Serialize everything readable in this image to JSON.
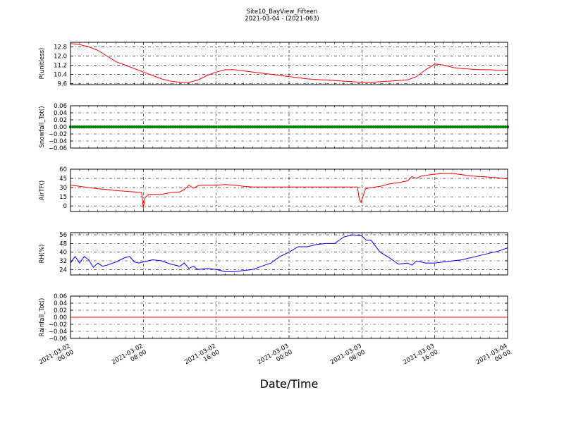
{
  "figure": {
    "title_line1": "Site10_BayView_Fifteen",
    "title_line2": "2021-03-04 - (2021-063)",
    "xlabel": "Date/Time"
  },
  "chart_data": [
    {
      "type": "line",
      "name": "panel-pressure",
      "ylabel": "P(unitless)",
      "ylim": [
        9.5,
        13.2
      ],
      "yticks": [
        "9.6",
        "10.4",
        "11.2",
        "12.0",
        "12.8"
      ],
      "ytick_values": [
        9.6,
        10.4,
        11.2,
        12.0,
        12.8
      ],
      "color": "#ff0000",
      "grid": true,
      "x_hours": [
        0,
        1,
        2,
        3,
        4,
        5,
        6,
        7,
        8,
        9,
        10,
        11,
        12,
        13,
        14,
        15,
        16,
        17,
        18,
        19,
        20,
        21,
        22,
        23,
        24,
        25,
        26,
        27,
        28,
        29,
        30,
        31,
        32,
        33,
        34,
        35,
        36,
        37,
        38,
        39,
        40,
        41,
        42,
        43,
        44,
        45,
        46,
        47,
        48
      ],
      "values": [
        13.1,
        13.0,
        12.8,
        12.5,
        12.0,
        11.5,
        11.2,
        10.9,
        10.6,
        10.3,
        10.0,
        9.8,
        9.7,
        9.7,
        9.9,
        10.3,
        10.6,
        10.8,
        10.8,
        10.7,
        10.6,
        10.5,
        10.4,
        10.3,
        10.2,
        10.1,
        10.0,
        9.95,
        9.9,
        9.85,
        9.8,
        9.75,
        9.7,
        9.7,
        9.75,
        9.8,
        9.85,
        9.9,
        10.2,
        10.8,
        11.3,
        11.2,
        11.0,
        10.9,
        10.85,
        10.8,
        10.8,
        10.75,
        10.75
      ]
    },
    {
      "type": "line",
      "name": "panel-snowfall",
      "ylabel": "Snowfall_Tot()",
      "ylim": [
        -0.06,
        0.06
      ],
      "yticks": [
        "−0.06",
        "−0.04",
        "−0.02",
        "0.00",
        "0.02",
        "0.04",
        "0.06"
      ],
      "ytick_values": [
        -0.06,
        -0.04,
        -0.02,
        0.0,
        0.02,
        0.04,
        0.06
      ],
      "color": "#008000",
      "marker": "dots",
      "grid": true,
      "x_hours": [
        0,
        48
      ],
      "values": [
        0,
        0
      ]
    },
    {
      "type": "line",
      "name": "panel-airtemp",
      "ylabel": "AirTF()",
      "ylim": [
        -9,
        60
      ],
      "yticks": [
        "0",
        "15",
        "30",
        "45",
        "60"
      ],
      "ytick_values": [
        0,
        15,
        30,
        45,
        60
      ],
      "color": "#ff0000",
      "grid": true,
      "x_hours": [
        0,
        1,
        2,
        3,
        4,
        5,
        6,
        7,
        7.8,
        8.0,
        8.2,
        8.6,
        9,
        10,
        11,
        12,
        12.5,
        13,
        13.5,
        14,
        14.5,
        15,
        16,
        17,
        18,
        19,
        20,
        21,
        22,
        23,
        24,
        25,
        26,
        27,
        28,
        29,
        31.5,
        31.7,
        31.9,
        32.4,
        33,
        34,
        35,
        36,
        37,
        37.5,
        38,
        38.5,
        39,
        40,
        41,
        42,
        43,
        44,
        45,
        46,
        47,
        48
      ],
      "values": [
        34,
        32,
        30,
        28,
        27,
        25,
        24,
        23,
        22,
        -3,
        14,
        19,
        19,
        19,
        22,
        23,
        27,
        34,
        29,
        33,
        34,
        34,
        34,
        35,
        34,
        32,
        31,
        31,
        31,
        31,
        31,
        31,
        31,
        31,
        31,
        31,
        31,
        12,
        6,
        28,
        30,
        32,
        36,
        38,
        41,
        48,
        45,
        49,
        50,
        52,
        53,
        53,
        51,
        49,
        48,
        47,
        46,
        44
      ]
    },
    {
      "type": "line",
      "name": "panel-rh",
      "ylabel": "RH(%)",
      "ylim": [
        19,
        58
      ],
      "yticks": [
        "24",
        "32",
        "40",
        "48",
        "56"
      ],
      "ytick_values": [
        24,
        32,
        40,
        48,
        56
      ],
      "color": "#0000ff",
      "grid": true,
      "x_hours": [
        0,
        0.5,
        1,
        1.5,
        2,
        2.5,
        3,
        3.5,
        4,
        5,
        6,
        6.5,
        7,
        7.5,
        8,
        9,
        10,
        11,
        12,
        12.5,
        13,
        13.5,
        14,
        15,
        16,
        17,
        18,
        19,
        20,
        21,
        22,
        23,
        24,
        25,
        26,
        27,
        28,
        29,
        30,
        31,
        32,
        32.5,
        33,
        34,
        35,
        36,
        37,
        37.5,
        38,
        39,
        40,
        41,
        42,
        43,
        44,
        45,
        46,
        47,
        48
      ],
      "values": [
        30,
        36,
        30,
        36,
        33,
        26,
        30,
        27,
        28,
        31,
        35,
        36,
        31,
        30,
        31,
        33,
        32,
        29,
        27,
        30,
        25,
        27,
        24,
        25,
        24,
        22,
        22,
        23,
        24,
        27,
        30,
        36,
        40,
        45,
        45,
        47,
        48,
        48,
        54,
        56,
        55,
        51,
        51,
        40,
        35,
        29,
        30,
        28,
        32,
        30,
        30,
        31,
        32,
        33,
        35,
        37,
        39,
        41,
        44
      ]
    },
    {
      "type": "line",
      "name": "panel-rainfall",
      "ylabel": "Rainfall_Tot()",
      "ylim": [
        -0.06,
        0.06
      ],
      "yticks": [
        "−0.06",
        "−0.04",
        "−0.02",
        "0.00",
        "0.02",
        "0.04",
        "0.06"
      ],
      "ytick_values": [
        -0.06,
        -0.04,
        -0.02,
        0.0,
        0.02,
        0.04,
        0.06
      ],
      "color": "#ff0000",
      "grid": true,
      "x_hours": [
        0,
        48
      ],
      "values": [
        0,
        0
      ]
    }
  ],
  "x_axis": {
    "tick_hours": [
      0,
      8,
      16,
      24,
      32,
      40,
      48
    ],
    "tick_labels": [
      [
        "2021-03-02",
        "00:00"
      ],
      [
        "2021-03-02",
        "08:00"
      ],
      [
        "2021-03-02",
        "16:00"
      ],
      [
        "2021-03-03",
        "00:00"
      ],
      [
        "2021-03-03",
        "08:00"
      ],
      [
        "2021-03-03",
        "16:00"
      ],
      [
        "2021-03-04",
        "00:00"
      ]
    ]
  }
}
